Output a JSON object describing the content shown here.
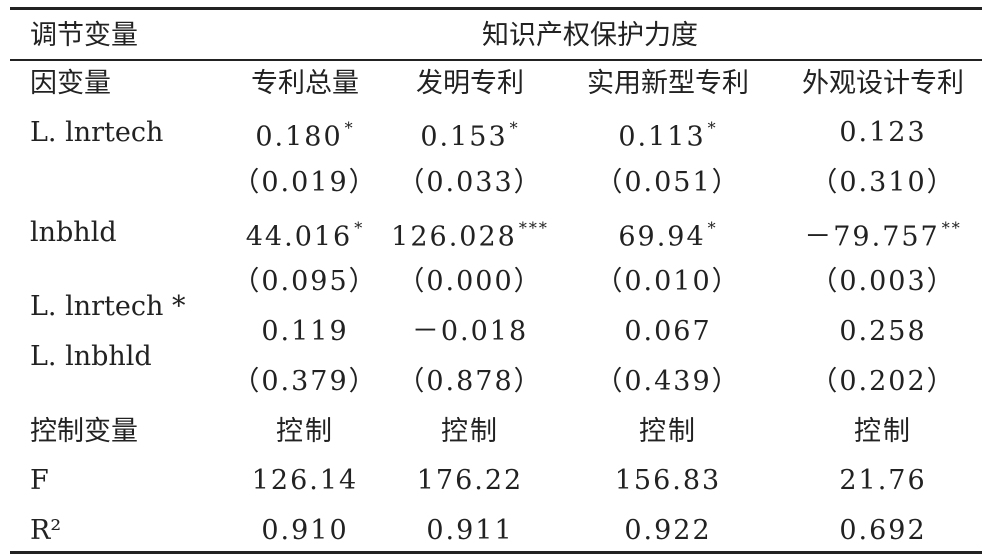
{
  "table": {
    "header": [
      "调节变量",
      "知识产权保护力度"
    ],
    "columns": [
      "因变量",
      "专利总量",
      "发明专利",
      "实用新型专利",
      "外观设计专利"
    ],
    "rows": [
      {
        "label": "L. lnrtech",
        "cells": [
          {
            "text": "0.180",
            "stars": "*"
          },
          {
            "text": "0.153",
            "stars": "*"
          },
          {
            "text": "0.113",
            "stars": "*"
          },
          {
            "text": "0.123"
          }
        ]
      },
      {
        "cells": [
          {
            "text": "（0.019）"
          },
          {
            "text": "（0.033）"
          },
          {
            "text": "（0.051）"
          },
          {
            "text": "（0.310）"
          }
        ]
      },
      {
        "label": "lnbhld",
        "cells": [
          {
            "text": "44.016",
            "stars": "*"
          },
          {
            "text": "126.028",
            "stars": "***"
          },
          {
            "text": "69.94",
            "stars": "*"
          },
          {
            "text": "－79.757",
            "stars": "**"
          }
        ]
      },
      {
        "cells": [
          {
            "text": "（0.095）"
          },
          {
            "text": "（0.000）"
          },
          {
            "text": "（0.010）"
          },
          {
            "text": "（0.003）"
          }
        ]
      },
      {
        "label": [
          "L. lnrtech *",
          "L. lnbhld"
        ],
        "cells": [
          {
            "text": "0.119"
          },
          {
            "text": "－0.018"
          },
          {
            "text": "0.067"
          },
          {
            "text": "0.258"
          }
        ]
      },
      {
        "cells": [
          {
            "text": "（0.379）"
          },
          {
            "text": "（0.878）"
          },
          {
            "text": "（0.439）"
          },
          {
            "text": "（0.202）"
          }
        ]
      },
      {
        "label": "控制变量",
        "cells": [
          {
            "text": "控制"
          },
          {
            "text": "控制"
          },
          {
            "text": "控制"
          },
          {
            "text": "控制"
          }
        ]
      },
      {
        "label": "F",
        "cells": [
          {
            "text": "126.14"
          },
          {
            "text": "176.22"
          },
          {
            "text": "156.83"
          },
          {
            "text": "21.76"
          }
        ]
      },
      {
        "label": "R²",
        "cells": [
          {
            "text": "0.910"
          },
          {
            "text": "0.911"
          },
          {
            "text": "0.922"
          },
          {
            "text": "0.692"
          }
        ]
      }
    ]
  }
}
